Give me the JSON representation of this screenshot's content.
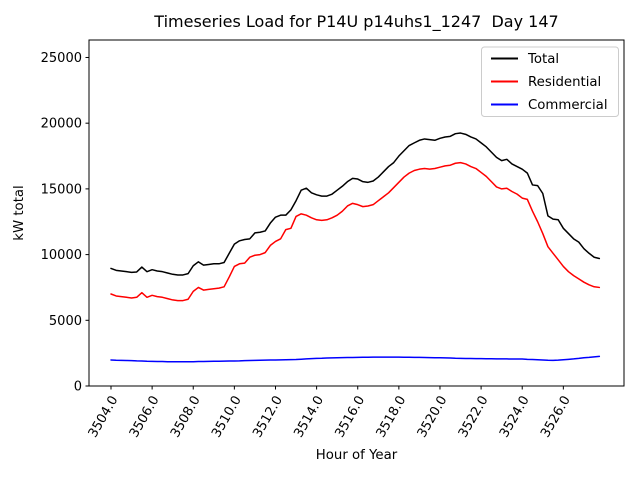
{
  "figure": {
    "background": "#ffffff",
    "frame_color": "#000000"
  },
  "chart_data": {
    "type": "line",
    "title": "Timeseries Load for P14U p14uhs1_1247  Day 147",
    "xlabel": "Hour of Year",
    "ylabel": "kW total",
    "grid": false,
    "legend_position": "upper right",
    "legend_border_color": "#cccccc",
    "xlim": [
      3502.93,
      3528.95
    ],
    "ylim": [
      0,
      26330
    ],
    "xticks": {
      "values": [
        3504,
        3506,
        3508,
        3510,
        3512,
        3514,
        3516,
        3518,
        3520,
        3522,
        3524,
        3526
      ],
      "labels": [
        "3504.0",
        "3506.0",
        "3508.0",
        "3510.0",
        "3512.0",
        "3514.0",
        "3516.0",
        "3518.0",
        "3520.0",
        "3522.0",
        "3524.0",
        "3526.0"
      ],
      "rotation_deg": 60
    },
    "yticks": {
      "values": [
        0,
        5000,
        10000,
        15000,
        20000,
        25000
      ],
      "labels": [
        "0",
        "5000",
        "10000",
        "15000",
        "20000",
        "25000"
      ]
    },
    "x": [
      3504.0,
      3504.25,
      3504.5,
      3504.75,
      3505.0,
      3505.25,
      3505.5,
      3505.75,
      3506.0,
      3506.25,
      3506.5,
      3506.75,
      3507.0,
      3507.25,
      3507.5,
      3507.75,
      3508.0,
      3508.25,
      3508.5,
      3508.75,
      3509.0,
      3509.25,
      3509.5,
      3509.75,
      3510.0,
      3510.25,
      3510.5,
      3510.75,
      3511.0,
      3511.25,
      3511.5,
      3511.75,
      3512.0,
      3512.25,
      3512.5,
      3512.75,
      3513.0,
      3513.25,
      3513.5,
      3513.75,
      3514.0,
      3514.25,
      3514.5,
      3514.75,
      3515.0,
      3515.25,
      3515.5,
      3515.75,
      3516.0,
      3516.25,
      3516.5,
      3516.75,
      3517.0,
      3517.25,
      3517.5,
      3517.75,
      3518.0,
      3518.25,
      3518.5,
      3518.75,
      3519.0,
      3519.25,
      3519.5,
      3519.75,
      3520.0,
      3520.25,
      3520.5,
      3520.75,
      3521.0,
      3521.25,
      3521.5,
      3521.75,
      3522.0,
      3522.25,
      3522.5,
      3522.75,
      3523.0,
      3523.25,
      3523.5,
      3523.75,
      3524.0,
      3524.25,
      3524.5,
      3524.75,
      3525.0,
      3525.25,
      3525.5,
      3525.75,
      3526.0,
      3526.25,
      3526.5,
      3526.75,
      3527.0,
      3527.25,
      3527.5,
      3527.75
    ],
    "series": [
      {
        "name": "Total",
        "color": "#000000",
        "values": [
          8950,
          8800,
          8750,
          8700,
          8650,
          8680,
          9050,
          8700,
          8850,
          8750,
          8700,
          8600,
          8500,
          8450,
          8450,
          8550,
          9150,
          9450,
          9200,
          9250,
          9300,
          9300,
          9400,
          10100,
          10800,
          11050,
          11150,
          11200,
          11650,
          11700,
          11800,
          12400,
          12850,
          13000,
          13000,
          13400,
          14100,
          14900,
          15050,
          14700,
          14550,
          14450,
          14450,
          14600,
          14900,
          15200,
          15550,
          15800,
          15750,
          15550,
          15500,
          15600,
          15900,
          16300,
          16700,
          17000,
          17500,
          17900,
          18300,
          18500,
          18700,
          18800,
          18750,
          18700,
          18850,
          18950,
          19000,
          19200,
          19250,
          19150,
          18950,
          18800,
          18500,
          18200,
          17800,
          17400,
          17150,
          17250,
          16900,
          16700,
          16500,
          16200,
          15300,
          15250,
          14650,
          12950,
          12700,
          12650,
          12000,
          11600,
          11200,
          10950,
          10450,
          10100,
          9800,
          9700
        ]
      },
      {
        "name": "Residential",
        "color": "#ff0000",
        "values": [
          7000,
          6850,
          6800,
          6750,
          6700,
          6750,
          7100,
          6750,
          6900,
          6800,
          6750,
          6650,
          6550,
          6500,
          6500,
          6600,
          7200,
          7500,
          7300,
          7350,
          7400,
          7450,
          7550,
          8300,
          9100,
          9300,
          9350,
          9800,
          9950,
          10000,
          10150,
          10700,
          11000,
          11200,
          11900,
          12000,
          12900,
          13100,
          13000,
          12800,
          12650,
          12600,
          12650,
          12800,
          13000,
          13300,
          13700,
          13900,
          13800,
          13650,
          13700,
          13800,
          14100,
          14400,
          14700,
          15100,
          15500,
          15900,
          16200,
          16400,
          16500,
          16550,
          16500,
          16550,
          16650,
          16750,
          16800,
          16950,
          17000,
          16900,
          16700,
          16550,
          16250,
          15950,
          15550,
          15150,
          15000,
          15050,
          14800,
          14600,
          14300,
          14200,
          13300,
          12500,
          11600,
          10600,
          10100,
          9600,
          9100,
          8700,
          8400,
          8150,
          7900,
          7700,
          7550,
          7500
        ]
      },
      {
        "name": "Commercial",
        "color": "#0000ff",
        "values": [
          1980,
          1960,
          1950,
          1940,
          1930,
          1910,
          1900,
          1880,
          1870,
          1860,
          1860,
          1850,
          1850,
          1850,
          1850,
          1850,
          1850,
          1860,
          1860,
          1870,
          1880,
          1880,
          1890,
          1900,
          1900,
          1910,
          1930,
          1940,
          1950,
          1960,
          1970,
          1980,
          1980,
          1990,
          2000,
          2010,
          2020,
          2040,
          2060,
          2080,
          2100,
          2110,
          2130,
          2140,
          2150,
          2160,
          2170,
          2170,
          2180,
          2190,
          2190,
          2200,
          2200,
          2200,
          2200,
          2200,
          2200,
          2190,
          2190,
          2180,
          2180,
          2170,
          2160,
          2150,
          2150,
          2140,
          2130,
          2110,
          2100,
          2090,
          2090,
          2080,
          2080,
          2070,
          2070,
          2060,
          2060,
          2060,
          2050,
          2050,
          2050,
          2030,
          2020,
          2000,
          1980,
          1960,
          1950,
          1970,
          2000,
          2030,
          2060,
          2100,
          2150,
          2180,
          2220,
          2250
        ]
      }
    ]
  }
}
